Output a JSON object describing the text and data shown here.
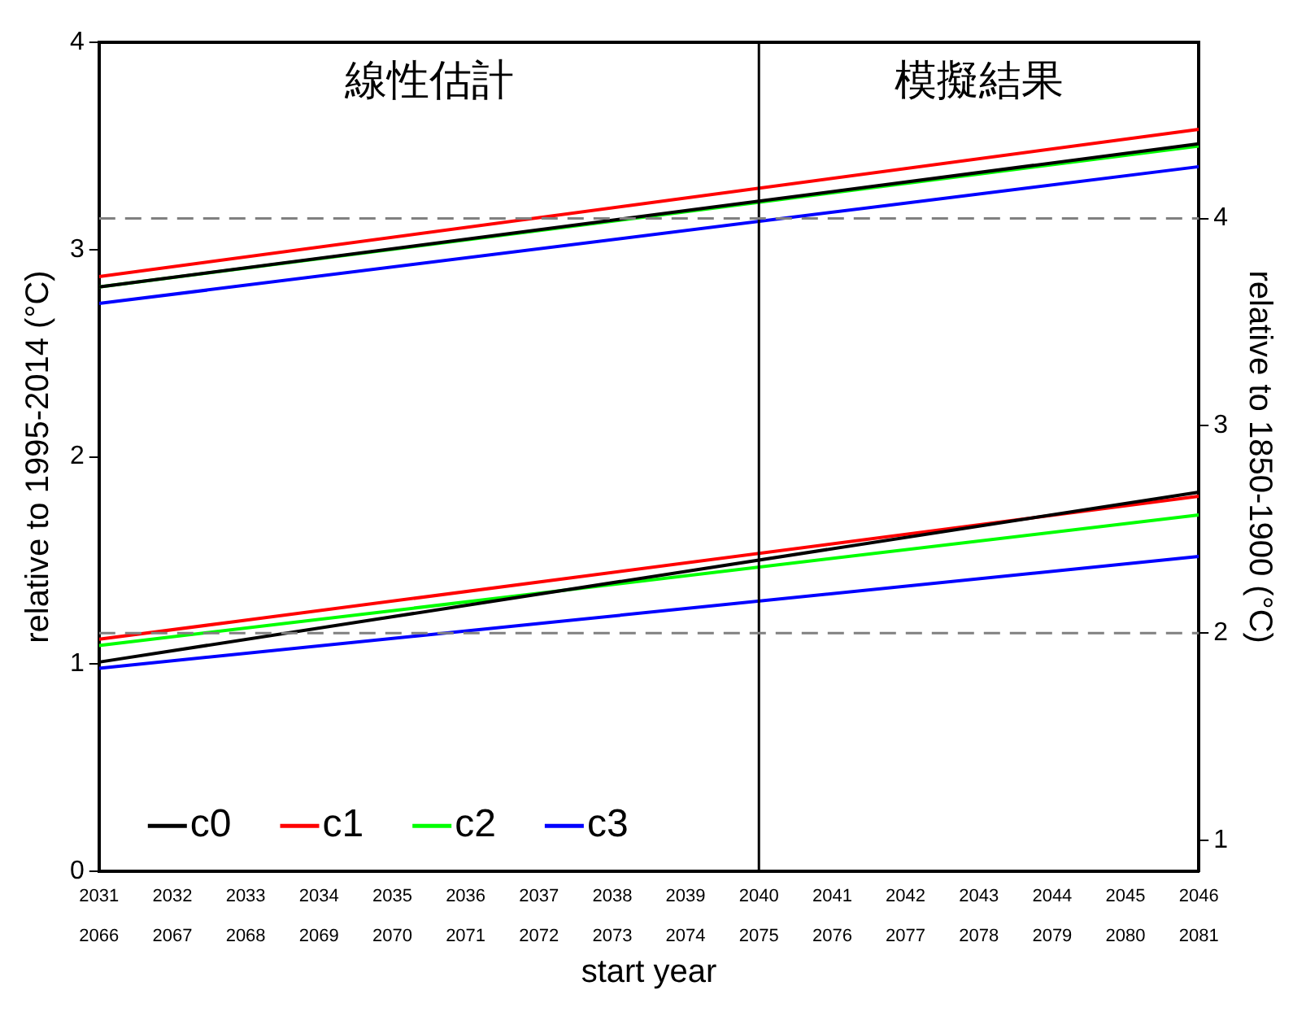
{
  "chart_data": {
    "type": "line",
    "xlabel": "start year",
    "ylabel": "relative to 1995-2014 (°C)",
    "y2label": "relative to 1850-1900 (°C)",
    "xlim": [
      2031,
      2046
    ],
    "xticks": [
      2031,
      2032,
      2033,
      2034,
      2035,
      2036,
      2037,
      2038,
      2039,
      2040,
      2041,
      2042,
      2043,
      2044,
      2045,
      2046
    ],
    "x2lim": [
      2066,
      2081
    ],
    "x2ticks": [
      2066,
      2067,
      2068,
      2069,
      2070,
      2071,
      2072,
      2073,
      2074,
      2075,
      2076,
      2077,
      2078,
      2079,
      2080,
      2081
    ],
    "ylim": [
      0,
      4
    ],
    "yticks": [
      0,
      1,
      2,
      3,
      4
    ],
    "y2lim": [
      0.85,
      4.85
    ],
    "y2ticks": [
      1,
      2,
      3,
      4
    ],
    "x": [
      2031,
      2046
    ],
    "series": [
      {
        "name": "c0",
        "color": "#000000",
        "values": [
          2.82,
          3.51
        ]
      },
      {
        "name": "c1",
        "color": "#ff0000",
        "values": [
          2.87,
          3.58
        ]
      },
      {
        "name": "c2",
        "color": "#00ff00",
        "values": [
          2.82,
          3.5
        ]
      },
      {
        "name": "c3",
        "color": "#0000ff",
        "values": [
          2.74,
          3.4
        ]
      },
      {
        "color": "#000000",
        "values": [
          1.01,
          1.83
        ]
      },
      {
        "color": "#ff0000",
        "values": [
          1.12,
          1.81
        ]
      },
      {
        "color": "#00ff00",
        "values": [
          1.09,
          1.72
        ]
      },
      {
        "color": "#0000ff",
        "values": [
          0.98,
          1.52
        ]
      }
    ],
    "ref_lines": [
      {
        "axis": "x",
        "value": 2040,
        "color": "#000000",
        "line_style": "solid"
      },
      {
        "axis": "y",
        "value": 3.15,
        "color": "#808080",
        "line_style": "dashed"
      },
      {
        "axis": "y",
        "value": 1.15,
        "color": "#808080",
        "line_style": "dashed"
      }
    ],
    "annotations": [
      "線性估計",
      "模擬結果"
    ],
    "legend": "bottom left",
    "grid": false,
    "marker": "none",
    "line_style": "solid"
  }
}
